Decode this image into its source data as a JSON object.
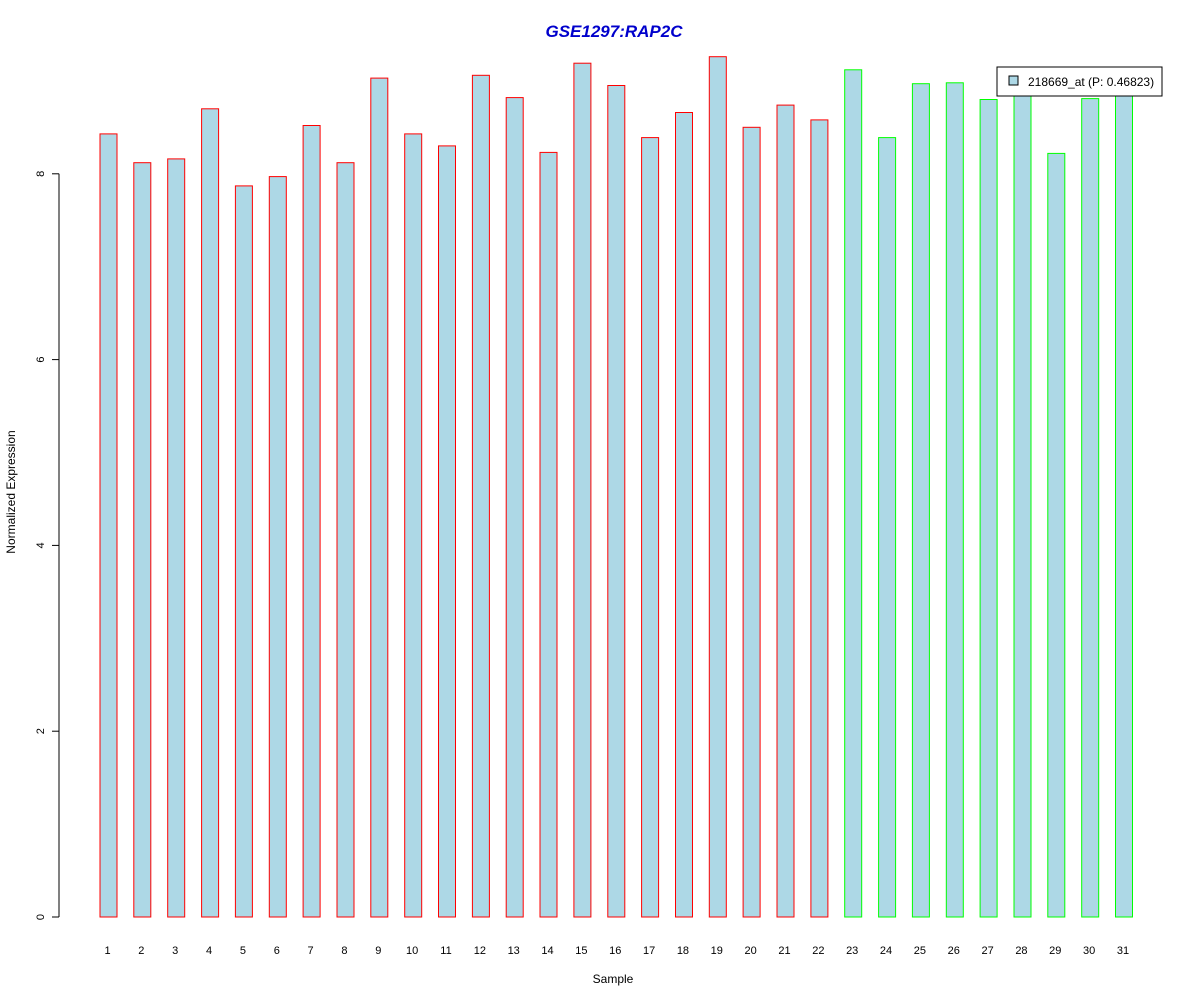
{
  "chart_data": {
    "type": "bar",
    "title": "GSE1297:RAP2C",
    "xlabel": "Sample",
    "ylabel": "Normalized Expression",
    "ylim": [
      0,
      9.45
    ],
    "yticks": [
      0,
      2,
      4,
      6,
      8
    ],
    "grid": false,
    "legend": {
      "position": "top-right",
      "entries": [
        "218669_at (P: 0.46823)"
      ]
    },
    "categories": [
      "1",
      "2",
      "3",
      "4",
      "5",
      "6",
      "7",
      "8",
      "9",
      "10",
      "11",
      "12",
      "13",
      "14",
      "15",
      "16",
      "17",
      "18",
      "19",
      "20",
      "21",
      "22",
      "23",
      "24",
      "25",
      "26",
      "27",
      "28",
      "29",
      "30",
      "31"
    ],
    "values": [
      8.43,
      8.12,
      8.16,
      8.7,
      7.87,
      7.97,
      8.52,
      8.12,
      9.03,
      8.43,
      8.3,
      9.06,
      8.82,
      8.23,
      9.19,
      8.95,
      8.39,
      8.66,
      9.26,
      8.5,
      8.74,
      8.58,
      9.12,
      8.39,
      8.97,
      8.98,
      8.8,
      8.89,
      8.22,
      8.81,
      8.88
    ],
    "groups": [
      {
        "name": "",
        "count": 22,
        "border_color": "#ff0000"
      },
      {
        "name": "",
        "count": 9,
        "border_color": "#00ff00"
      }
    ],
    "bar_fill": "#add8e6",
    "title_color": "#0000cc"
  }
}
